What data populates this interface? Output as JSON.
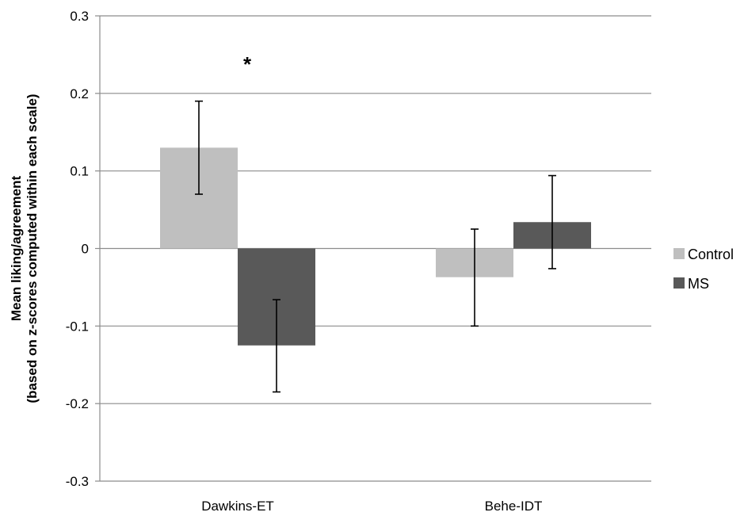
{
  "chart_data": {
    "type": "bar",
    "categories": [
      "Dawkins-ET",
      "Behe-IDT"
    ],
    "series": [
      {
        "name": "Control",
        "color": "#bfbfbf",
        "values": [
          0.13,
          -0.037
        ],
        "error_low": [
          0.07,
          -0.1
        ],
        "error_high": [
          0.19,
          0.025
        ]
      },
      {
        "name": "MS",
        "color": "#595959",
        "values": [
          -0.125,
          0.034
        ],
        "error_low": [
          -0.185,
          -0.026
        ],
        "error_high": [
          -0.066,
          0.094
        ]
      }
    ],
    "ylim": [
      -0.3,
      0.3
    ],
    "yticks": [
      -0.3,
      -0.2,
      -0.1,
      0,
      0.1,
      0.2,
      0.3
    ],
    "ytick_labels": [
      "-0.3",
      "-0.2",
      "-0.1",
      "0",
      "0.1",
      "0.2",
      "0.3"
    ],
    "ylabel_lines": [
      "Mean liking/agreement",
      "(based on z-scores computed within each scale)"
    ],
    "xlabel": "",
    "title": "",
    "grid": true,
    "legend": "right",
    "annotations": [
      {
        "text": "*",
        "category": "Dawkins-ET",
        "y": 0.245
      }
    ]
  }
}
